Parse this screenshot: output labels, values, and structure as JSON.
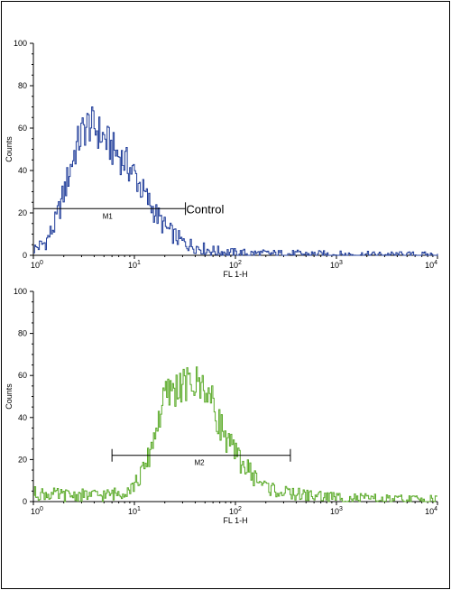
{
  "chart_data": [
    {
      "type": "line",
      "title": "",
      "xlabel": "FL 1-H",
      "ylabel": "Counts",
      "x_scale": "log",
      "xlim": [
        1,
        10000
      ],
      "ylim": [
        0,
        100
      ],
      "x_ticks": [
        {
          "value": 1,
          "base": "10",
          "exp": "0"
        },
        {
          "value": 10,
          "base": "10",
          "exp": "1"
        },
        {
          "value": 100,
          "base": "10",
          "exp": "2"
        },
        {
          "value": 1000,
          "base": "10",
          "exp": "3"
        },
        {
          "value": 10000,
          "base": "10",
          "exp": "4"
        }
      ],
      "y_ticks": [
        "0",
        "20",
        "40",
        "60",
        "80",
        "100"
      ],
      "series": [
        {
          "color": "#1f3c99",
          "x": [
            1,
            1.3,
            1.6,
            2.0,
            2.5,
            3.0,
            3.5,
            4.0,
            5.0,
            6.0,
            7.0,
            8.0,
            10,
            12,
            15,
            20,
            25,
            30,
            40,
            60,
            100,
            200,
            500,
            1000,
            3000,
            10000
          ],
          "y": [
            3,
            6,
            14,
            30,
            48,
            58,
            62,
            60,
            55,
            50,
            47,
            44,
            38,
            30,
            22,
            13,
            9,
            6,
            4,
            2,
            1,
            0.7,
            0.5,
            0.3,
            0.2,
            0.1
          ]
        }
      ],
      "markers": [
        {
          "label": "M1",
          "x_start": 1,
          "x_end": 32,
          "y": 22
        }
      ],
      "annotations": [
        {
          "text": "Control",
          "x": 40,
          "y": 22
        }
      ],
      "grid": false,
      "legend": "none"
    },
    {
      "type": "line",
      "title": "",
      "xlabel": "FL 1-H",
      "ylabel": "Counts",
      "x_scale": "log",
      "xlim": [
        1,
        10000
      ],
      "ylim": [
        0,
        100
      ],
      "x_ticks": [
        {
          "value": 1,
          "base": "10",
          "exp": "0"
        },
        {
          "value": 10,
          "base": "10",
          "exp": "1"
        },
        {
          "value": 100,
          "base": "10",
          "exp": "2"
        },
        {
          "value": 1000,
          "base": "10",
          "exp": "3"
        },
        {
          "value": 10000,
          "base": "10",
          "exp": "4"
        }
      ],
      "y_ticks": [
        "0",
        "20",
        "40",
        "60",
        "80",
        "100"
      ],
      "series": [
        {
          "color": "#5aaa28",
          "x": [
            1,
            2,
            3,
            5,
            7,
            10,
            13,
            16,
            20,
            25,
            30,
            40,
            50,
            60,
            80,
            100,
            150,
            200,
            300,
            500,
            1000,
            3000,
            10000
          ],
          "y": [
            4,
            3,
            3,
            3,
            4,
            8,
            17,
            34,
            50,
            54,
            55,
            56,
            55,
            45,
            30,
            22,
            12,
            7,
            4,
            3,
            2,
            1,
            1
          ]
        }
      ],
      "markers": [
        {
          "label": "M2",
          "x_start": 6,
          "x_end": 350,
          "y": 22
        }
      ],
      "annotations": [],
      "grid": false,
      "legend": "none"
    }
  ]
}
